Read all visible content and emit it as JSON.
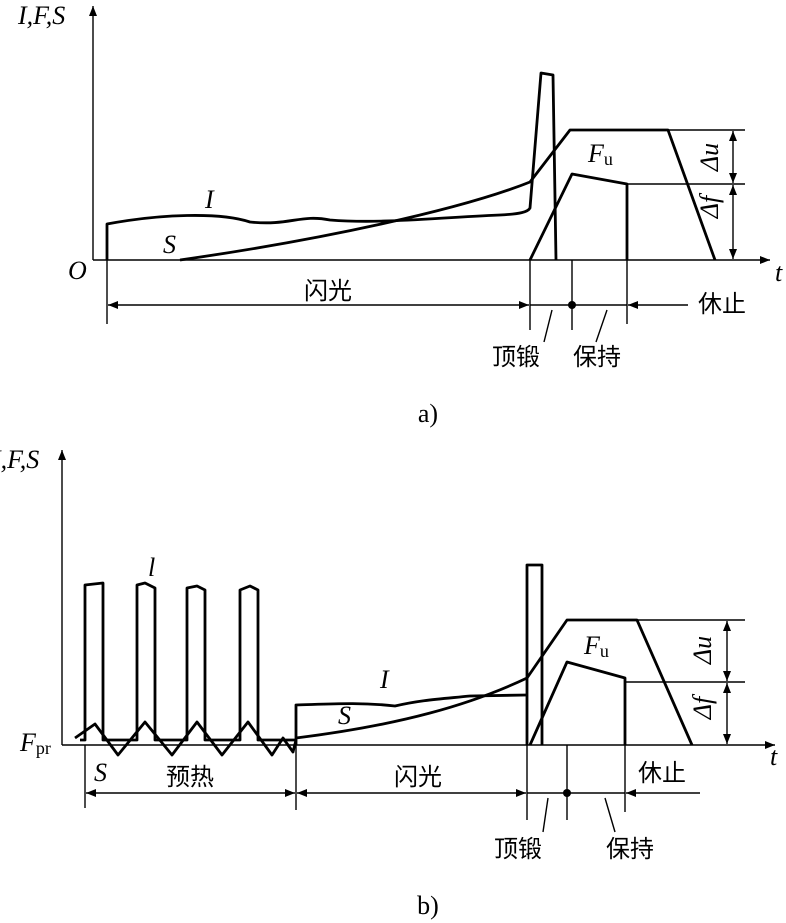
{
  "diagram_a": {
    "axis_label": "I,F,S",
    "origin": "O",
    "time": "t",
    "current": "I",
    "stroke": "S",
    "force": {
      "main": "F",
      "sub": "u"
    },
    "delta_u": "Δu",
    "delta_f": "Δf",
    "phases": {
      "flash": "闪光",
      "rest": "休止",
      "upset": "顶锻",
      "hold": "保持"
    },
    "caption": "a)"
  },
  "diagram_b": {
    "axis_label": "I,F,S",
    "time": "t",
    "pulse_current": "l",
    "current": "I",
    "stroke": "S",
    "stroke_preheat": "S",
    "preload": {
      "main": "F",
      "sub": "pr"
    },
    "force": {
      "main": "F",
      "sub": "u"
    },
    "delta_u": "Δu",
    "delta_f": "Δf",
    "phases": {
      "preheat": "预热",
      "flash": "闪光",
      "rest": "休止",
      "upset": "顶锻",
      "hold": "保持"
    },
    "caption": "b)"
  }
}
